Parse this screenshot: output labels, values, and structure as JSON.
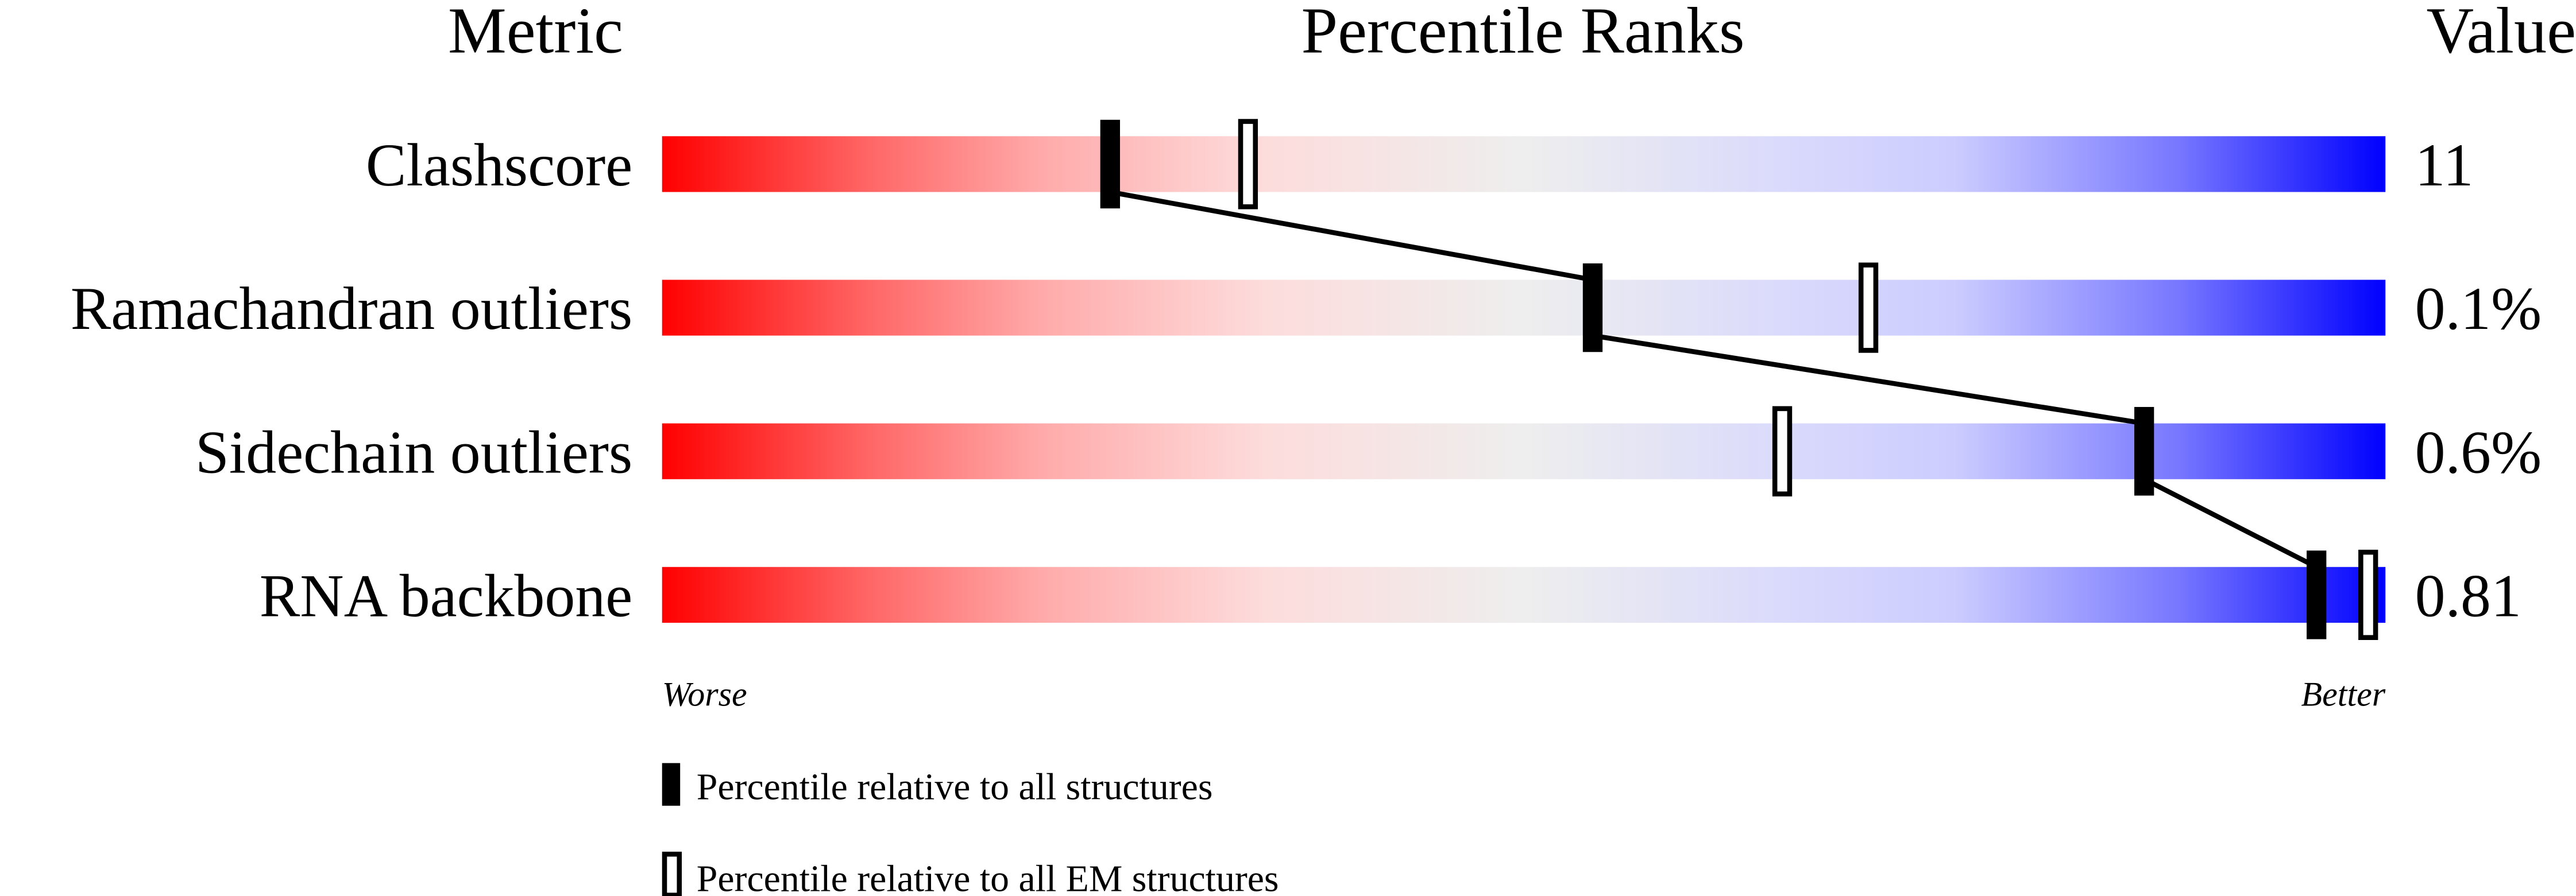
{
  "chart_data": {
    "type": "bar",
    "headers": {
      "metric": "Metric",
      "ranks": "Percentile Ranks",
      "value": "Value"
    },
    "xlim": [
      0,
      100
    ],
    "axis_labels": {
      "left": "Worse",
      "right": "Better"
    },
    "colors": {
      "worse": "#ff0000",
      "neutral": "#eeeeee",
      "better": "#0000ff",
      "marker": "#000000"
    },
    "rows": [
      {
        "metric": "Clashscore",
        "value": "11",
        "percentile_all": 26,
        "percentile_em": 34
      },
      {
        "metric": "Ramachandran outliers",
        "value": "0.1%",
        "percentile_all": 54,
        "percentile_em": 70
      },
      {
        "metric": "Sidechain outliers",
        "value": "0.6%",
        "percentile_all": 86,
        "percentile_em": 65
      },
      {
        "metric": "RNA backbone",
        "value": "0.81",
        "percentile_all": 96,
        "percentile_em": 99
      }
    ],
    "legend": [
      {
        "marker": "filled",
        "label": "Percentile relative to all structures"
      },
      {
        "marker": "open",
        "label": "Percentile relative to all EM structures"
      }
    ]
  }
}
